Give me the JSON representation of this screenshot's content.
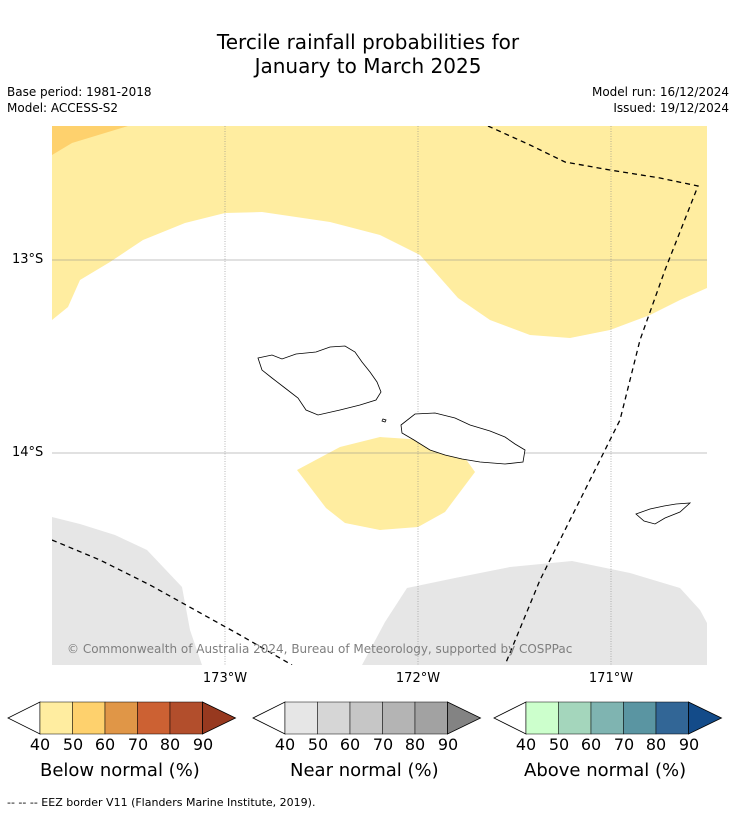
{
  "header": {
    "title_line1": "Tercile rainfall probabilities for",
    "title_line2": "January to March 2025",
    "base_period": "Base period: 1981-2018",
    "model": "Model: ACCESS-S2",
    "model_run": "Model run: 16/12/2024",
    "issued": "Issued: 19/12/2024"
  },
  "map": {
    "lat_labels": [
      "13°S",
      "14°S"
    ],
    "lon_labels": [
      "173°W",
      "172°W",
      "171°W"
    ],
    "copyright": "© Commonwealth of Australia 2024, Bureau of Meteorology, supported by COSPPac",
    "colors": {
      "below_50": "#ffeda0",
      "below_60": "#fed16d",
      "near_50": "#e6e6e6",
      "eez_line": "#000000"
    }
  },
  "legends": [
    {
      "caption": "Below normal (%)",
      "ticks": [
        "40",
        "50",
        "60",
        "70",
        "80",
        "90"
      ],
      "colors": [
        "#ffeda0",
        "#fed16d",
        "#e09647",
        "#cc6133",
        "#b24e2c",
        "#97391f"
      ]
    },
    {
      "caption": "Near normal (%)",
      "ticks": [
        "40",
        "50",
        "60",
        "70",
        "80",
        "90"
      ],
      "colors": [
        "#e6e6e6",
        "#d6d6d6",
        "#c6c6c6",
        "#b4b4b4",
        "#a2a2a2",
        "#838383"
      ]
    },
    {
      "caption": "Above normal (%)",
      "ticks": [
        "40",
        "50",
        "60",
        "70",
        "80",
        "90"
      ],
      "colors": [
        "#ccffcc",
        "#a4d6bc",
        "#7fb4b1",
        "#5a95a2",
        "#326696",
        "#134b89"
      ]
    }
  ],
  "footnote": "--  --  -- EEZ border V11 (Flanders Marine Institute, 2019)."
}
